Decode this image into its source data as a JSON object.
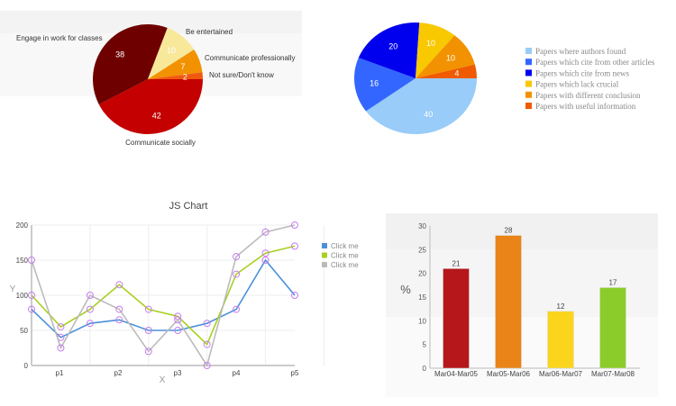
{
  "chart_data": [
    {
      "type": "pie",
      "title": "",
      "slices": [
        {
          "label": "Communicate socially",
          "value": 42,
          "color": "#c40000"
        },
        {
          "label": "Engage in work for classes",
          "value": 38,
          "color": "#6e0000"
        },
        {
          "label": "Be entertained",
          "value": 10,
          "color": "#f8e89a"
        },
        {
          "label": "Communicate professionally",
          "value": 7,
          "color": "#f39200"
        },
        {
          "label": "Not sure/Don't know",
          "value": 2,
          "color": "#f05a10"
        }
      ]
    },
    {
      "type": "pie",
      "title": "",
      "legend_position": "right",
      "slices": [
        {
          "label": "Papers where authors found",
          "value": 40,
          "color": "#99ccf8"
        },
        {
          "label": "Papers which cite from other articles",
          "value": 16,
          "color": "#3366ff"
        },
        {
          "label": "Papers which cite from news",
          "value": 20,
          "color": "#0000ee"
        },
        {
          "label": "Papers which lack crucial",
          "value": 10,
          "color": "#f8c800"
        },
        {
          "label": "Papers with different conclusion",
          "value": 10,
          "color": "#f39200"
        },
        {
          "label": "Papers with useful information",
          "value": 4,
          "color": "#f05a00"
        }
      ]
    },
    {
      "type": "line",
      "title": "JS Chart",
      "xlabel": "X",
      "ylabel": "Y",
      "ylim": [
        0,
        200
      ],
      "yticks": [
        "0",
        "50",
        "100",
        "150",
        "200"
      ],
      "xticks": [
        "p1",
        "p2",
        "p3",
        "p4",
        "p5"
      ],
      "legend_position": "right",
      "grid": true,
      "series": [
        {
          "name": "Click me",
          "color": "#4a90d9",
          "values": [
            80,
            40,
            60,
            65,
            50,
            50,
            60,
            80,
            150,
            100
          ]
        },
        {
          "name": "Click me",
          "color": "#a8d020",
          "values": [
            100,
            55,
            80,
            115,
            80,
            70,
            30,
            130,
            160,
            170
          ]
        },
        {
          "name": "Click me",
          "color": "#bbbbbb",
          "values": [
            150,
            25,
            100,
            80,
            20,
            65,
            0,
            155,
            190,
            200
          ]
        }
      ]
    },
    {
      "type": "bar",
      "title": "",
      "xlabel": "",
      "ylabel": "%",
      "ylim": [
        0,
        30
      ],
      "yticks": [
        "0",
        "5",
        "10",
        "15",
        "20",
        "25",
        "30"
      ],
      "categories": [
        "Mar04-Mar05",
        "Mar05-Mar06",
        "Mar06-Mar07",
        "Mar07-Mar08"
      ],
      "values": [
        21,
        28,
        12,
        17
      ],
      "labels": [
        "21",
        "28",
        "12",
        "17"
      ],
      "colors": [
        "#b5171b",
        "#ea8318",
        "#fad51c",
        "#8ccc2a"
      ]
    }
  ]
}
